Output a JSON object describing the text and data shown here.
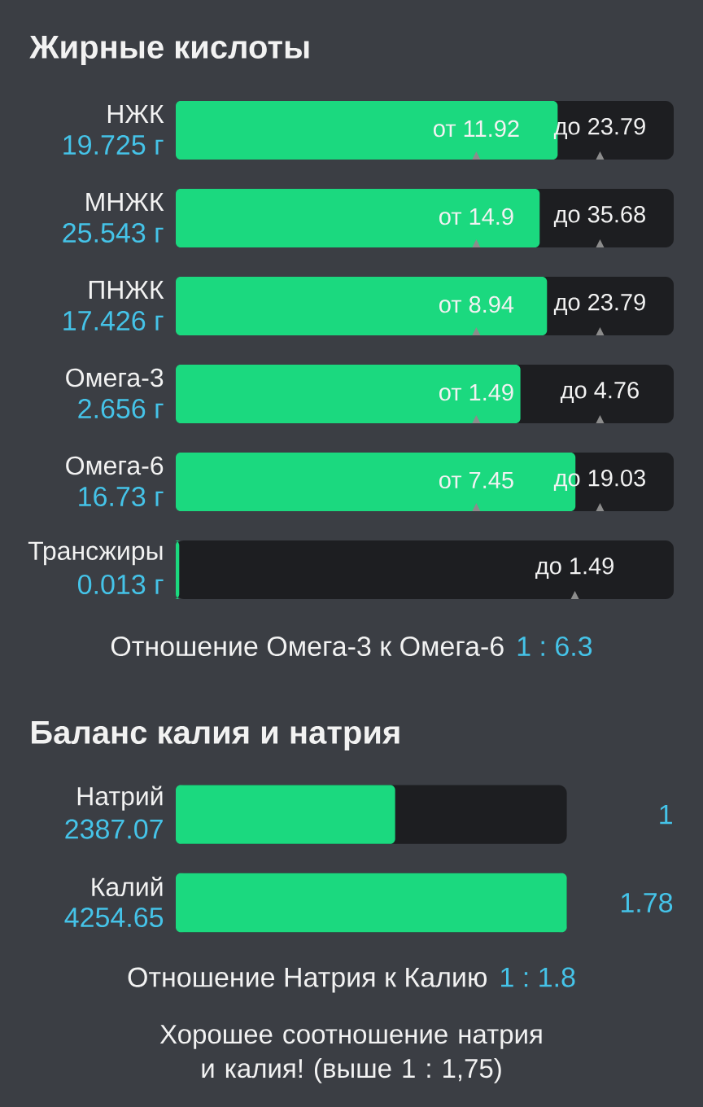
{
  "chart_data": [
    {
      "type": "other",
      "title": "Жирные кислоты",
      "categories": [
        "НЖК",
        "МНЖК",
        "ПНЖК",
        "Омега-3",
        "Омега-6",
        "Трансжиры"
      ],
      "values": [
        19.725,
        25.543,
        17.426,
        2.656,
        16.73,
        0.013
      ],
      "value_labels": [
        "19.725 г",
        "25.543 г",
        "17.426 г",
        "2.656 г",
        "16.73 г",
        "0.013 г"
      ],
      "color": "#1bd97f",
      "annotations": [
        "от 11.92",
        "до 23.79",
        "от 14.9",
        "до 35.68",
        "от 8.94",
        "до 23.79",
        "от 1.49",
        "до 4.76",
        "от 7.45",
        "до 19.03",
        "до 1.49",
        "Отношение Омега-3 к Омега-6",
        "1 : 6.3"
      ]
    },
    {
      "type": "bar",
      "orientation": "horizontal",
      "title": "Баланс калия и натрия",
      "categories": [
        "Натрий",
        "Калий"
      ],
      "values": [
        2387.07,
        4254.65
      ],
      "data_labels": true,
      "color": "#1bd97f",
      "annotations": [
        "1",
        "1.78",
        "Отношение Натрия к Калию",
        "1 : 1.8",
        "Хорошее соотношение натрия и калия! (выше 1 : 1,75)"
      ]
    }
  ]
}
